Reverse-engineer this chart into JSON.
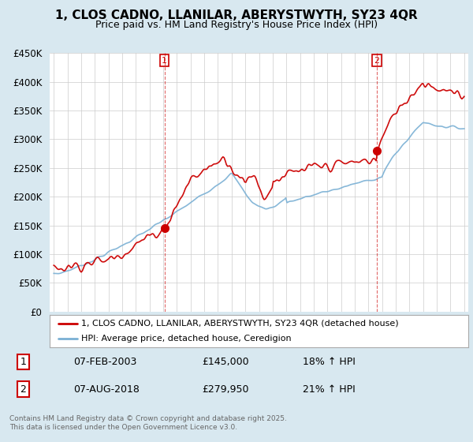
{
  "title": "1, CLOS CADNO, LLANILAR, ABERYSTWYTH, SY23 4QR",
  "subtitle": "Price paid vs. HM Land Registry's House Price Index (HPI)",
  "bg_color": "#d8e8f0",
  "plot_bg_color": "#ffffff",
  "legend_label_red": "1, CLOS CADNO, LLANILAR, ABERYSTWYTH, SY23 4QR (detached house)",
  "legend_label_blue": "HPI: Average price, detached house, Ceredigion",
  "purchase1_date": "07-FEB-2003",
  "purchase1_price": 145000,
  "purchase1_hpi": "18% ↑ HPI",
  "purchase2_date": "07-AUG-2018",
  "purchase2_price": 279950,
  "purchase2_hpi": "21% ↑ HPI",
  "footer": "Contains HM Land Registry data © Crown copyright and database right 2025.\nThis data is licensed under the Open Government Licence v3.0.",
  "ylim": [
    0,
    450000
  ],
  "yticks": [
    0,
    50000,
    100000,
    150000,
    200000,
    250000,
    300000,
    350000,
    400000,
    450000
  ],
  "year_start": 1995,
  "year_end": 2025,
  "red_color": "#cc0000",
  "blue_color": "#7ab0d4",
  "marker1_year": 2003.1,
  "marker1_value": 145000,
  "marker2_year": 2018.6,
  "marker2_value": 279950
}
